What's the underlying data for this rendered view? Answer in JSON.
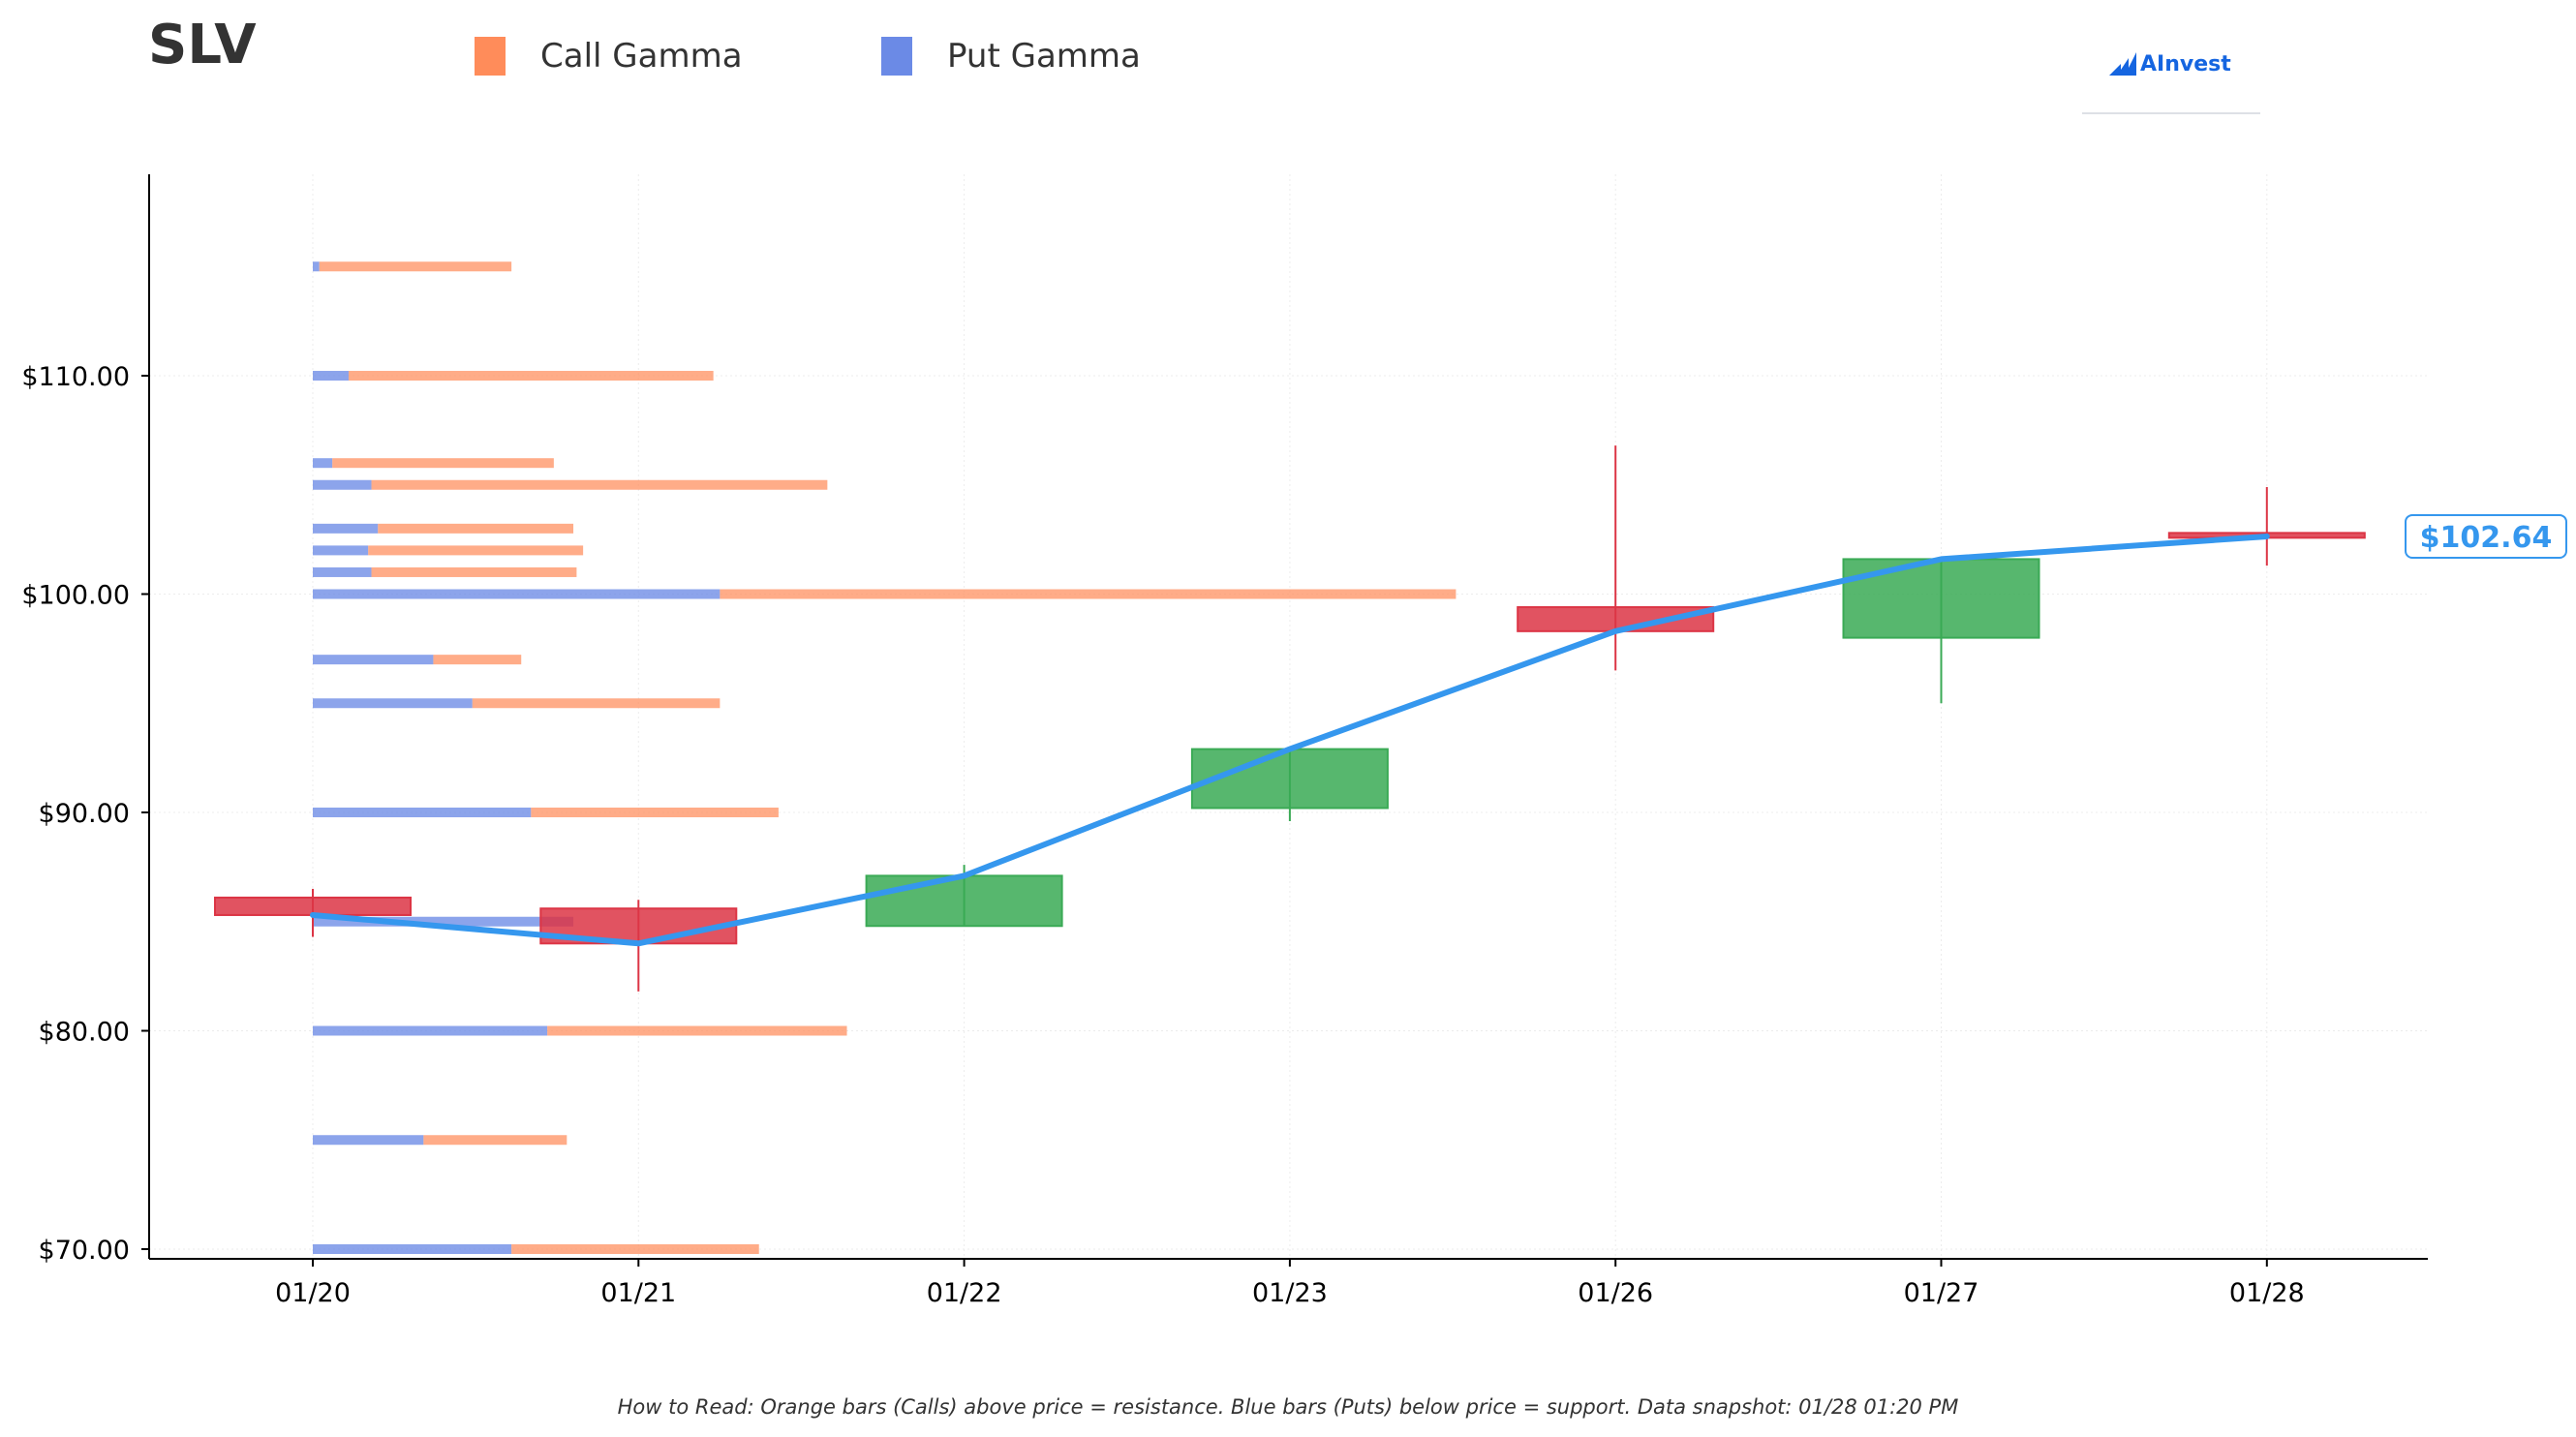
{
  "header": {
    "ticker": "SLV",
    "legend": [
      {
        "label": "Call Gamma",
        "color": "#ff8c5a"
      },
      {
        "label": "Put Gamma",
        "color": "#6b8ae6"
      }
    ],
    "logo_text": "AInvest"
  },
  "footer": {
    "note": "How to Read: Orange bars (Calls) above price = resistance. Blue bars (Puts) below price = support. Data snapshot: 01/28 01:20 PM"
  },
  "chart_data": {
    "type": "candlestick",
    "x_categories": [
      "01/20",
      "01/21",
      "01/22",
      "01/23",
      "01/26",
      "01/27",
      "01/28"
    ],
    "ylim": [
      69.5,
      119
    ],
    "y_ticks": [
      70,
      80,
      90,
      100,
      110
    ],
    "y_tick_labels": [
      "$70.00",
      "$80.00",
      "$90.00",
      "$100.00",
      "$110.00"
    ],
    "grid": true,
    "colors": {
      "up": "#3aaa55",
      "down": "#dc3545",
      "price_line": "#3597ee",
      "call": "#ff8c5a",
      "put": "#6b8ae6"
    },
    "candles": [
      {
        "date": "01/20",
        "open": 86.1,
        "high": 86.5,
        "low": 84.3,
        "close": 85.3
      },
      {
        "date": "01/21",
        "open": 85.6,
        "high": 86.0,
        "low": 81.8,
        "close": 84.0
      },
      {
        "date": "01/22",
        "open": 84.8,
        "high": 87.6,
        "low": 84.8,
        "close": 87.1
      },
      {
        "date": "01/23",
        "open": 90.2,
        "high": 92.9,
        "low": 89.6,
        "close": 92.9
      },
      {
        "date": "01/26",
        "open": 99.4,
        "high": 106.8,
        "low": 96.5,
        "close": 98.3
      },
      {
        "date": "01/27",
        "open": 98.0,
        "high": 101.6,
        "low": 95.0,
        "close": 101.6
      },
      {
        "date": "01/28",
        "open": 102.8,
        "high": 104.9,
        "low": 101.3,
        "close": 102.64
      }
    ],
    "price_line": [
      85.3,
      84.0,
      87.1,
      92.9,
      98.3,
      101.6,
      102.64
    ],
    "last_price_label": "$102.64",
    "gamma_units": "relative (x-axis day units)",
    "gamma": [
      {
        "strike": 115,
        "put": 0.02,
        "call": 0.59
      },
      {
        "strike": 110,
        "put": 0.11,
        "call": 1.12
      },
      {
        "strike": 106,
        "put": 0.06,
        "call": 0.68
      },
      {
        "strike": 105,
        "put": 0.18,
        "call": 1.4
      },
      {
        "strike": 103,
        "put": 0.2,
        "call": 0.6
      },
      {
        "strike": 102,
        "put": 0.17,
        "call": 0.66
      },
      {
        "strike": 101,
        "put": 0.18,
        "call": 0.63
      },
      {
        "strike": 100,
        "put": 1.25,
        "call": 2.26
      },
      {
        "strike": 97,
        "put": 0.37,
        "call": 0.27
      },
      {
        "strike": 95,
        "put": 0.49,
        "call": 0.76
      },
      {
        "strike": 90,
        "put": 0.67,
        "call": 0.76
      },
      {
        "strike": 85,
        "put": 0.8,
        "call": 0.0
      },
      {
        "strike": 80,
        "put": 0.72,
        "call": 0.92
      },
      {
        "strike": 75,
        "put": 0.34,
        "call": 0.44
      },
      {
        "strike": 70,
        "put": 0.61,
        "call": 0.76
      }
    ]
  }
}
